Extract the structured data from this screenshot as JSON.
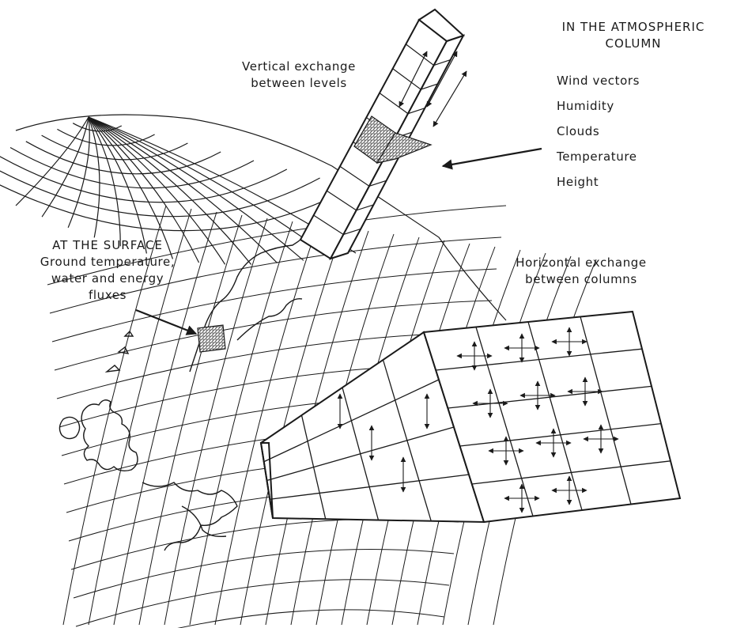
{
  "column_labels": {
    "heading_line1": "IN THE ATMOSPHERIC",
    "heading_line2": "COLUMN",
    "variables": [
      "Wind vectors",
      "Humidity",
      "Clouds",
      "Temperature",
      "Height"
    ]
  },
  "vertical_exchange": {
    "line1": "Vertical exchange",
    "line2": "between levels"
  },
  "surface": {
    "heading": "AT THE SURFACE",
    "line1": "Ground temperature,",
    "line2": "water and energy",
    "line3": "fluxes"
  },
  "horizontal_exchange": {
    "line1": "Horizontal exchange",
    "line2": "between columns"
  },
  "colors": {
    "ink": "#1a1a1a",
    "hatch": "#7a7a7a",
    "background": "#ffffff"
  }
}
